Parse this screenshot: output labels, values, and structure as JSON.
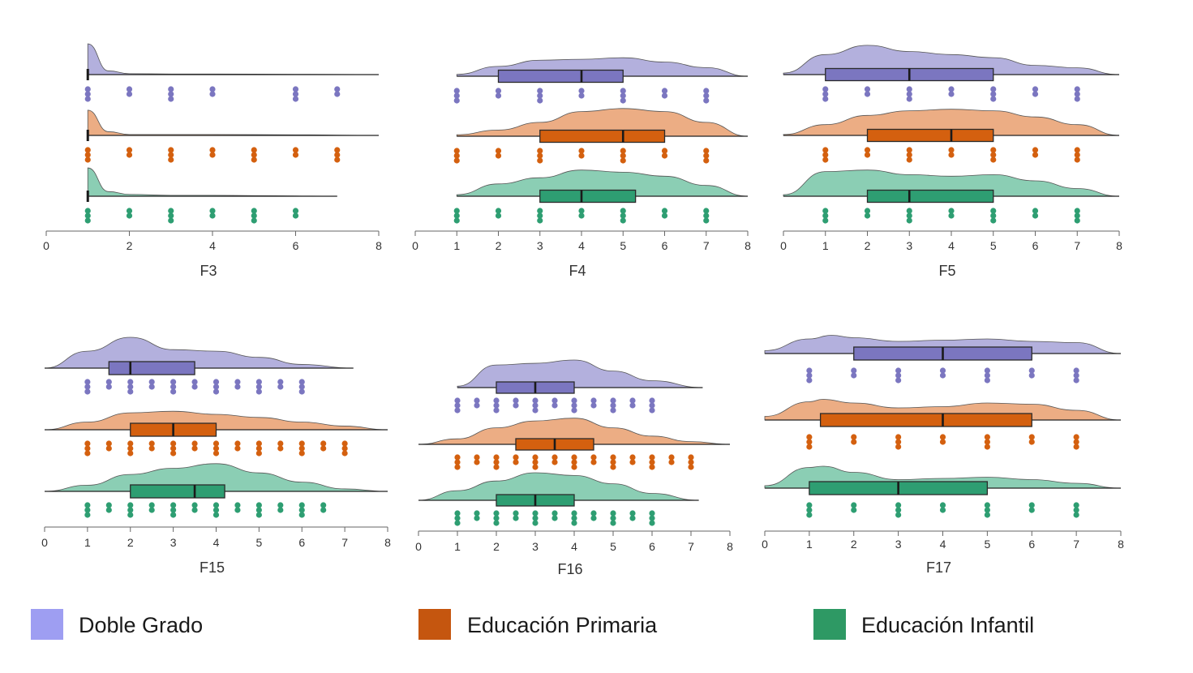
{
  "colors": {
    "Doble Grado": {
      "fill": "#b3b0dd",
      "box": "#7b76c0",
      "dots": "#7b76c0",
      "legend": "#9e9ef2"
    },
    "Educación Primaria": {
      "fill": "#ecad84",
      "box": "#d4600f",
      "dots": "#d4600f",
      "legend": "#c5560f"
    },
    "Educación Infantil": {
      "fill": "#8bceb4",
      "box": "#2e9e72",
      "dots": "#2e9e72",
      "legend": "#2e9964"
    }
  },
  "legend": [
    {
      "label": "Doble Grado"
    },
    {
      "label": "Educación Primaria"
    },
    {
      "label": "Educación Infantil"
    }
  ],
  "chart_data": [
    {
      "type": "raincloud",
      "xlabel": "F3",
      "xlim": [
        0,
        8
      ],
      "ticks": [
        "0",
        "2",
        "4",
        "6",
        "8"
      ],
      "series": [
        {
          "name": "Doble Grado",
          "range": [
            1,
            8
          ],
          "median": 1,
          "box": null,
          "density": [
            [
              1,
              1
            ],
            [
              1.5,
              0.12
            ],
            [
              2,
              0.03
            ],
            [
              3,
              0.02
            ],
            [
              4,
              0.02
            ],
            [
              6,
              0.01
            ],
            [
              8,
              0
            ]
          ],
          "points": [
            1,
            2,
            3,
            4,
            6,
            7
          ]
        },
        {
          "name": "Educación Primaria",
          "range": [
            1,
            8
          ],
          "median": 1,
          "box": null,
          "density": [
            [
              1,
              0.82
            ],
            [
              1.5,
              0.12
            ],
            [
              2,
              0.03
            ],
            [
              4,
              0.03
            ],
            [
              6,
              0.02
            ],
            [
              8,
              0
            ]
          ],
          "points": [
            1,
            2,
            3,
            4,
            5,
            6,
            7
          ]
        },
        {
          "name": "Educación Infantil",
          "range": [
            1,
            7
          ],
          "median": 1,
          "box": null,
          "density": [
            [
              1,
              0.92
            ],
            [
              1.5,
              0.15
            ],
            [
              2,
              0.06
            ],
            [
              3,
              0.03
            ],
            [
              4,
              0.03
            ],
            [
              5,
              0.02
            ],
            [
              7,
              0
            ]
          ],
          "points": [
            1,
            2,
            3,
            4,
            5,
            6
          ]
        }
      ]
    },
    {
      "type": "raincloud",
      "xlabel": "F4",
      "xlim": [
        0,
        8
      ],
      "ticks": [
        "0",
        "1",
        "2",
        "3",
        "4",
        "5",
        "6",
        "7",
        "8"
      ],
      "series": [
        {
          "name": "Doble Grado",
          "range": [
            1,
            8
          ],
          "median": 4,
          "box": [
            2,
            5
          ],
          "density": [
            [
              1,
              0.06
            ],
            [
              2,
              0.32
            ],
            [
              3,
              0.52
            ],
            [
              4,
              0.55
            ],
            [
              5,
              0.6
            ],
            [
              6,
              0.46
            ],
            [
              7,
              0.28
            ],
            [
              8,
              0
            ]
          ],
          "points": [
            1,
            2,
            3,
            4,
            5,
            6,
            7
          ]
        },
        {
          "name": "Educación Primaria",
          "range": [
            1,
            8
          ],
          "median": 5,
          "box": [
            3,
            6
          ],
          "density": [
            [
              1,
              0.05
            ],
            [
              2,
              0.2
            ],
            [
              3,
              0.45
            ],
            [
              4,
              0.8
            ],
            [
              5,
              0.9
            ],
            [
              6,
              0.8
            ],
            [
              7,
              0.45
            ],
            [
              8,
              0
            ]
          ],
          "points": [
            1,
            2,
            3,
            4,
            5,
            6,
            7
          ]
        },
        {
          "name": "Educación Infantil",
          "range": [
            1,
            8
          ],
          "median": 4,
          "box": [
            3,
            5.3
          ],
          "density": [
            [
              1,
              0.05
            ],
            [
              2,
              0.4
            ],
            [
              3,
              0.6
            ],
            [
              4,
              0.85
            ],
            [
              5,
              0.78
            ],
            [
              6,
              0.65
            ],
            [
              7,
              0.35
            ],
            [
              8,
              0
            ]
          ],
          "points": [
            1,
            2,
            3,
            4,
            5,
            6,
            7
          ]
        }
      ]
    },
    {
      "type": "raincloud",
      "xlabel": "F5",
      "xlim": [
        0,
        8
      ],
      "ticks": [
        "0",
        "1",
        "2",
        "3",
        "4",
        "5",
        "6",
        "7",
        "8"
      ],
      "series": [
        {
          "name": "Doble Grado",
          "range": [
            0,
            8
          ],
          "median": 3,
          "box": [
            1,
            5
          ],
          "density": [
            [
              0,
              0.05
            ],
            [
              1,
              0.65
            ],
            [
              2,
              0.95
            ],
            [
              3,
              0.75
            ],
            [
              4,
              0.65
            ],
            [
              5,
              0.55
            ],
            [
              6,
              0.3
            ],
            [
              7,
              0.22
            ],
            [
              8,
              0
            ]
          ],
          "points": [
            1,
            2,
            3,
            4,
            5,
            6,
            7
          ]
        },
        {
          "name": "Educación Primaria",
          "range": [
            0,
            8
          ],
          "median": 4,
          "box": [
            2,
            5
          ],
          "density": [
            [
              0,
              0.03
            ],
            [
              1,
              0.35
            ],
            [
              2,
              0.65
            ],
            [
              3,
              0.8
            ],
            [
              4,
              0.85
            ],
            [
              5,
              0.8
            ],
            [
              6,
              0.6
            ],
            [
              7,
              0.35
            ],
            [
              8,
              0
            ]
          ],
          "points": [
            1,
            2,
            3,
            4,
            5,
            6,
            7
          ]
        },
        {
          "name": "Educación Infantil",
          "range": [
            0,
            8
          ],
          "median": 3,
          "box": [
            2,
            5
          ],
          "density": [
            [
              0,
              0.05
            ],
            [
              1,
              0.8
            ],
            [
              2,
              0.85
            ],
            [
              3,
              0.7
            ],
            [
              4,
              0.65
            ],
            [
              5,
              0.7
            ],
            [
              6,
              0.5
            ],
            [
              7,
              0.25
            ],
            [
              8,
              0
            ]
          ],
          "points": [
            1,
            2,
            3,
            4,
            5,
            6,
            7
          ]
        }
      ]
    },
    {
      "type": "raincloud",
      "xlabel": "F15",
      "xlim": [
        0,
        8
      ],
      "ticks": [
        "0",
        "1",
        "2",
        "3",
        "4",
        "5",
        "6",
        "7",
        "8"
      ],
      "series": [
        {
          "name": "Doble Grado",
          "range": [
            0,
            7.2
          ],
          "median": 2,
          "box": [
            1.5,
            3.5
          ],
          "density": [
            [
              0,
              0
            ],
            [
              1,
              0.55
            ],
            [
              2,
              1
            ],
            [
              3,
              0.6
            ],
            [
              4,
              0.55
            ],
            [
              5,
              0.35
            ],
            [
              6,
              0.12
            ],
            [
              7.2,
              0
            ]
          ],
          "points": [
            1,
            1.5,
            2,
            2.5,
            3,
            3.5,
            4,
            4.5,
            5,
            5.5,
            6
          ]
        },
        {
          "name": "Educación Primaria",
          "range": [
            0,
            8
          ],
          "median": 3,
          "box": [
            2,
            4
          ],
          "density": [
            [
              0,
              0
            ],
            [
              1,
              0.25
            ],
            [
              2,
              0.55
            ],
            [
              3,
              0.6
            ],
            [
              4,
              0.5
            ],
            [
              5,
              0.4
            ],
            [
              6,
              0.25
            ],
            [
              7,
              0.12
            ],
            [
              8,
              0
            ]
          ],
          "points": [
            1,
            1.5,
            2,
            2.5,
            3,
            3.5,
            4,
            4.5,
            5,
            5.5,
            6,
            6.5,
            7
          ]
        },
        {
          "name": "Educación Infantil",
          "range": [
            0,
            8
          ],
          "median": 3.5,
          "box": [
            2,
            4.2
          ],
          "density": [
            [
              0,
              0
            ],
            [
              1,
              0.2
            ],
            [
              2,
              0.55
            ],
            [
              3,
              0.75
            ],
            [
              4,
              0.9
            ],
            [
              5,
              0.6
            ],
            [
              6,
              0.3
            ],
            [
              7,
              0.08
            ],
            [
              8,
              0
            ]
          ],
          "points": [
            1,
            1.5,
            2,
            2.5,
            3,
            3.5,
            4,
            4.5,
            5,
            5.5,
            6,
            6.5
          ]
        }
      ]
    },
    {
      "type": "raincloud",
      "xlabel": "F16",
      "xlim": [
        0,
        8
      ],
      "ticks": [
        "0",
        "1",
        "2",
        "3",
        "4",
        "5",
        "6",
        "7",
        "8"
      ],
      "series": [
        {
          "name": "Doble Grado",
          "range": [
            1,
            7.3
          ],
          "median": 3,
          "box": [
            2,
            4
          ],
          "density": [
            [
              1,
              0.05
            ],
            [
              2,
              0.82
            ],
            [
              3,
              0.88
            ],
            [
              4,
              1
            ],
            [
              5,
              0.6
            ],
            [
              6,
              0.25
            ],
            [
              7.3,
              0
            ]
          ],
          "points": [
            1,
            1.5,
            2,
            2.5,
            3,
            3.5,
            4,
            4.5,
            5,
            5.5,
            6
          ]
        },
        {
          "name": "Educación Primaria",
          "range": [
            0,
            8
          ],
          "median": 3.5,
          "box": [
            2.5,
            4.5
          ],
          "density": [
            [
              0,
              0
            ],
            [
              1,
              0.2
            ],
            [
              2,
              0.6
            ],
            [
              3,
              0.85
            ],
            [
              4,
              0.95
            ],
            [
              5,
              0.6
            ],
            [
              6,
              0.3
            ],
            [
              7,
              0.1
            ],
            [
              8,
              0
            ]
          ],
          "points": [
            1,
            1.5,
            2,
            2.5,
            3,
            3.5,
            4,
            4.5,
            5,
            5.5,
            6,
            6.5,
            7
          ]
        },
        {
          "name": "Educación Infantil",
          "range": [
            0,
            7.2
          ],
          "median": 3,
          "box": [
            2,
            4
          ],
          "density": [
            [
              0,
              0
            ],
            [
              1,
              0.35
            ],
            [
              2,
              0.7
            ],
            [
              3,
              1
            ],
            [
              4,
              0.9
            ],
            [
              5,
              0.6
            ],
            [
              6,
              0.25
            ],
            [
              7.2,
              0
            ]
          ],
          "points": [
            1,
            1.5,
            2,
            2.5,
            3,
            3.5,
            4,
            4.5,
            5,
            5.5,
            6
          ]
        }
      ]
    },
    {
      "type": "raincloud",
      "xlabel": "F17",
      "xlim": [
        0,
        8
      ],
      "ticks": [
        "0",
        "1",
        "2",
        "3",
        "4",
        "5",
        "6",
        "7",
        "8"
      ],
      "series": [
        {
          "name": "Doble Grado",
          "range": [
            0,
            8
          ],
          "median": 4,
          "box": [
            2,
            6
          ],
          "density": [
            [
              0,
              0.12
            ],
            [
              1,
              0.6
            ],
            [
              1.5,
              0.75
            ],
            [
              2,
              0.65
            ],
            [
              3,
              0.5
            ],
            [
              4,
              0.55
            ],
            [
              5,
              0.6
            ],
            [
              6,
              0.5
            ],
            [
              7,
              0.45
            ],
            [
              8,
              0
            ]
          ],
          "points": [
            1,
            2,
            3,
            4,
            5,
            6,
            7
          ]
        },
        {
          "name": "Educación Primaria",
          "range": [
            0,
            8
          ],
          "median": 4,
          "box": [
            1.25,
            6
          ],
          "density": [
            [
              0,
              0.15
            ],
            [
              1,
              0.75
            ],
            [
              1.3,
              0.85
            ],
            [
              2,
              0.7
            ],
            [
              3,
              0.5
            ],
            [
              4,
              0.55
            ],
            [
              5,
              0.7
            ],
            [
              6,
              0.65
            ],
            [
              7,
              0.4
            ],
            [
              8,
              0
            ]
          ],
          "points": [
            1,
            2,
            3,
            4,
            5,
            6,
            7
          ]
        },
        {
          "name": "Educación Infantil",
          "range": [
            0,
            8
          ],
          "median": 3,
          "box": [
            1,
            5
          ],
          "density": [
            [
              0,
              0.1
            ],
            [
              1,
              0.85
            ],
            [
              1.3,
              0.9
            ],
            [
              2,
              0.65
            ],
            [
              3,
              0.35
            ],
            [
              4,
              0.4
            ],
            [
              5,
              0.45
            ],
            [
              6,
              0.35
            ],
            [
              7,
              0.2
            ],
            [
              8,
              0
            ]
          ],
          "points": [
            1,
            2,
            3,
            4,
            5,
            6,
            7
          ]
        }
      ]
    }
  ]
}
